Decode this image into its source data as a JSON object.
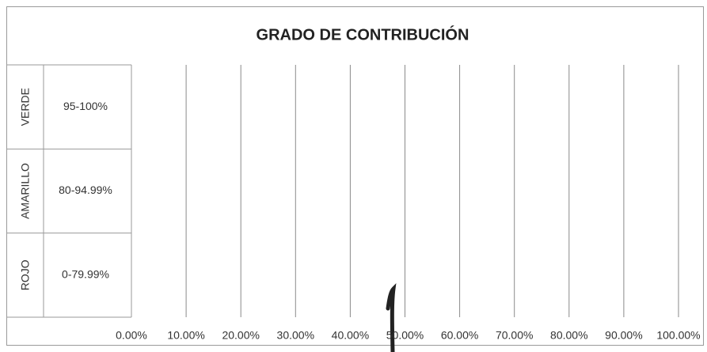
{
  "chart_data": {
    "type": "bar",
    "orientation": "horizontal",
    "title": "GRADO DE CONTRIBUCIÓN",
    "categories": [
      "VERDE",
      "AMARILLO",
      "ROJO"
    ],
    "category_ranges": [
      "95-100%",
      "80-94.99%",
      "0-79.99%"
    ],
    "xlim": [
      0,
      100
    ],
    "xticks": [
      {
        "value": 0,
        "label": "0.00%"
      },
      {
        "value": 10,
        "label": "10.00%"
      },
      {
        "value": 20,
        "label": "20.00%"
      },
      {
        "value": 30,
        "label": "30.00%"
      },
      {
        "value": 40,
        "label": "40.00%"
      },
      {
        "value": 50,
        "label": "50.00%"
      },
      {
        "value": 60,
        "label": "60.00%"
      },
      {
        "value": 70,
        "label": "70.00%"
      },
      {
        "value": 80,
        "label": "80.00%"
      },
      {
        "value": 90,
        "label": "90.00%"
      },
      {
        "value": 100,
        "label": "100.00%"
      }
    ],
    "grid": true
  }
}
